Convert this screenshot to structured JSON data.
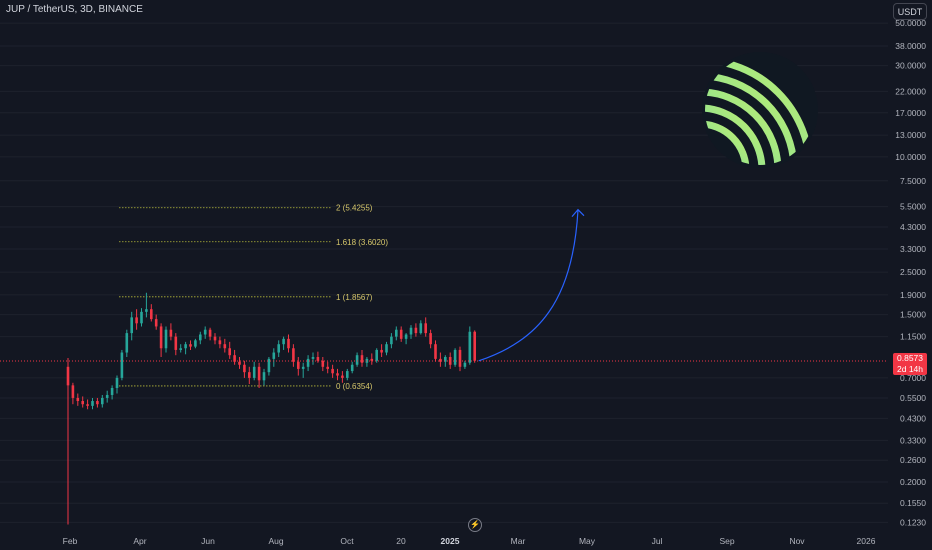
{
  "header": {
    "symbol_title": "JUP / TetherUS, 3D, BINANCE",
    "currency_label": "USDT"
  },
  "price_badge": {
    "price": "0.8573",
    "countdown": "2d 14h"
  },
  "colors": {
    "background": "#131722",
    "up": "#26a69a",
    "down": "#f23645",
    "fib_line": "#b5b83a",
    "arrow": "#2962ff"
  },
  "icons": {
    "logo": "jupiter-logo",
    "event": "lightning-icon"
  },
  "chart_data": {
    "type": "candlestick",
    "y_scale": "log",
    "ylim": [
      0.115,
      60
    ],
    "y_ticks": [
      "50.0000",
      "38.0000",
      "30.0000",
      "22.0000",
      "17.0000",
      "13.0000",
      "10.0000",
      "7.5000",
      "5.5000",
      "4.3000",
      "3.3000",
      "2.5000",
      "1.9000",
      "1.5000",
      "1.1500",
      "0.7000",
      "0.5500",
      "0.4300",
      "0.3300",
      "0.2600",
      "0.2000",
      "0.1550",
      "0.1230"
    ],
    "x_ticks": [
      "Feb",
      "Apr",
      "Jun",
      "Aug",
      "Oct",
      "20",
      "2025",
      "Mar",
      "May",
      "Jul",
      "Sep",
      "Nov",
      "2026"
    ],
    "grid": true,
    "fib_levels": [
      {
        "label": "0 (0.6354)",
        "value": 0.6354
      },
      {
        "label": "1 (1.8567)",
        "value": 1.8567
      },
      {
        "label": "1.618 (3.6020)",
        "value": 3.602
      },
      {
        "label": "2 (5.4255)",
        "value": 5.4255
      }
    ],
    "last_price": 0.8573,
    "projection": {
      "from_price": 0.86,
      "to_price": 5.3,
      "direction": "up"
    },
    "candles": [
      {
        "o": 0.8,
        "h": 0.89,
        "l": 0.12,
        "c": 0.64
      },
      {
        "o": 0.64,
        "h": 0.66,
        "l": 0.51,
        "c": 0.55
      },
      {
        "o": 0.55,
        "h": 0.58,
        "l": 0.5,
        "c": 0.53
      },
      {
        "o": 0.53,
        "h": 0.56,
        "l": 0.49,
        "c": 0.51
      },
      {
        "o": 0.51,
        "h": 0.54,
        "l": 0.48,
        "c": 0.5
      },
      {
        "o": 0.5,
        "h": 0.55,
        "l": 0.48,
        "c": 0.53
      },
      {
        "o": 0.53,
        "h": 0.55,
        "l": 0.49,
        "c": 0.51
      },
      {
        "o": 0.51,
        "h": 0.57,
        "l": 0.49,
        "c": 0.55
      },
      {
        "o": 0.55,
        "h": 0.6,
        "l": 0.52,
        "c": 0.57
      },
      {
        "o": 0.57,
        "h": 0.64,
        "l": 0.54,
        "c": 0.62
      },
      {
        "o": 0.62,
        "h": 0.72,
        "l": 0.58,
        "c": 0.7
      },
      {
        "o": 0.7,
        "h": 0.98,
        "l": 0.68,
        "c": 0.95
      },
      {
        "o": 0.95,
        "h": 1.25,
        "l": 0.9,
        "c": 1.2
      },
      {
        "o": 1.2,
        "h": 1.55,
        "l": 1.1,
        "c": 1.45
      },
      {
        "o": 1.45,
        "h": 1.6,
        "l": 1.25,
        "c": 1.35
      },
      {
        "o": 1.35,
        "h": 1.62,
        "l": 1.3,
        "c": 1.55
      },
      {
        "o": 1.55,
        "h": 1.95,
        "l": 1.45,
        "c": 1.6
      },
      {
        "o": 1.6,
        "h": 1.7,
        "l": 1.38,
        "c": 1.42
      },
      {
        "o": 1.42,
        "h": 1.5,
        "l": 1.25,
        "c": 1.3
      },
      {
        "o": 1.3,
        "h": 1.35,
        "l": 0.9,
        "c": 1.0
      },
      {
        "o": 1.0,
        "h": 1.3,
        "l": 0.95,
        "c": 1.25
      },
      {
        "o": 1.25,
        "h": 1.35,
        "l": 1.1,
        "c": 1.15
      },
      {
        "o": 1.15,
        "h": 1.2,
        "l": 0.92,
        "c": 0.98
      },
      {
        "o": 0.98,
        "h": 1.05,
        "l": 0.95,
        "c": 1.0
      },
      {
        "o": 1.0,
        "h": 1.08,
        "l": 0.93,
        "c": 1.05
      },
      {
        "o": 1.05,
        "h": 1.1,
        "l": 0.98,
        "c": 1.02
      },
      {
        "o": 1.02,
        "h": 1.12,
        "l": 1.0,
        "c": 1.1
      },
      {
        "o": 1.1,
        "h": 1.22,
        "l": 1.05,
        "c": 1.18
      },
      {
        "o": 1.18,
        "h": 1.3,
        "l": 1.12,
        "c": 1.25
      },
      {
        "o": 1.25,
        "h": 1.28,
        "l": 1.1,
        "c": 1.15
      },
      {
        "o": 1.15,
        "h": 1.2,
        "l": 1.05,
        "c": 1.1
      },
      {
        "o": 1.1,
        "h": 1.15,
        "l": 1.0,
        "c": 1.05
      },
      {
        "o": 1.05,
        "h": 1.12,
        "l": 0.95,
        "c": 1.0
      },
      {
        "o": 1.0,
        "h": 1.08,
        "l": 0.88,
        "c": 0.92
      },
      {
        "o": 0.92,
        "h": 0.98,
        "l": 0.82,
        "c": 0.85
      },
      {
        "o": 0.85,
        "h": 0.9,
        "l": 0.78,
        "c": 0.82
      },
      {
        "o": 0.82,
        "h": 0.86,
        "l": 0.7,
        "c": 0.75
      },
      {
        "o": 0.75,
        "h": 0.8,
        "l": 0.65,
        "c": 0.7
      },
      {
        "o": 0.7,
        "h": 0.85,
        "l": 0.68,
        "c": 0.8
      },
      {
        "o": 0.8,
        "h": 0.84,
        "l": 0.62,
        "c": 0.68
      },
      {
        "o": 0.68,
        "h": 0.78,
        "l": 0.64,
        "c": 0.75
      },
      {
        "o": 0.75,
        "h": 0.9,
        "l": 0.72,
        "c": 0.88
      },
      {
        "o": 0.88,
        "h": 1.0,
        "l": 0.8,
        "c": 0.95
      },
      {
        "o": 0.95,
        "h": 1.1,
        "l": 0.9,
        "c": 1.05
      },
      {
        "o": 1.05,
        "h": 1.15,
        "l": 0.98,
        "c": 1.12
      },
      {
        "o": 1.12,
        "h": 1.18,
        "l": 0.95,
        "c": 1.0
      },
      {
        "o": 1.0,
        "h": 1.05,
        "l": 0.8,
        "c": 0.85
      },
      {
        "o": 0.85,
        "h": 0.9,
        "l": 0.72,
        "c": 0.78
      },
      {
        "o": 0.78,
        "h": 0.84,
        "l": 0.7,
        "c": 0.8
      },
      {
        "o": 0.8,
        "h": 0.92,
        "l": 0.76,
        "c": 0.88
      },
      {
        "o": 0.88,
        "h": 0.95,
        "l": 0.82,
        "c": 0.9
      },
      {
        "o": 0.9,
        "h": 0.96,
        "l": 0.84,
        "c": 0.86
      },
      {
        "o": 0.86,
        "h": 0.9,
        "l": 0.76,
        "c": 0.8
      },
      {
        "o": 0.8,
        "h": 0.85,
        "l": 0.74,
        "c": 0.78
      },
      {
        "o": 0.78,
        "h": 0.82,
        "l": 0.7,
        "c": 0.74
      },
      {
        "o": 0.74,
        "h": 0.78,
        "l": 0.68,
        "c": 0.72
      },
      {
        "o": 0.72,
        "h": 0.76,
        "l": 0.66,
        "c": 0.7
      },
      {
        "o": 0.7,
        "h": 0.78,
        "l": 0.68,
        "c": 0.76
      },
      {
        "o": 0.76,
        "h": 0.85,
        "l": 0.74,
        "c": 0.82
      },
      {
        "o": 0.82,
        "h": 0.95,
        "l": 0.8,
        "c": 0.92
      },
      {
        "o": 0.92,
        "h": 0.98,
        "l": 0.8,
        "c": 0.84
      },
      {
        "o": 0.84,
        "h": 0.9,
        "l": 0.8,
        "c": 0.88
      },
      {
        "o": 0.88,
        "h": 0.94,
        "l": 0.82,
        "c": 0.86
      },
      {
        "o": 0.86,
        "h": 1.0,
        "l": 0.84,
        "c": 0.98
      },
      {
        "o": 0.98,
        "h": 1.05,
        "l": 0.9,
        "c": 0.95
      },
      {
        "o": 0.95,
        "h": 1.08,
        "l": 0.92,
        "c": 1.05
      },
      {
        "o": 1.05,
        "h": 1.2,
        "l": 1.0,
        "c": 1.15
      },
      {
        "o": 1.15,
        "h": 1.3,
        "l": 1.1,
        "c": 1.25
      },
      {
        "o": 1.25,
        "h": 1.3,
        "l": 1.08,
        "c": 1.12
      },
      {
        "o": 1.12,
        "h": 1.2,
        "l": 1.05,
        "c": 1.18
      },
      {
        "o": 1.18,
        "h": 1.32,
        "l": 1.12,
        "c": 1.28
      },
      {
        "o": 1.28,
        "h": 1.35,
        "l": 1.15,
        "c": 1.2
      },
      {
        "o": 1.2,
        "h": 1.4,
        "l": 1.18,
        "c": 1.35
      },
      {
        "o": 1.35,
        "h": 1.45,
        "l": 1.15,
        "c": 1.2
      },
      {
        "o": 1.2,
        "h": 1.25,
        "l": 1.0,
        "c": 1.05
      },
      {
        "o": 1.05,
        "h": 1.1,
        "l": 0.85,
        "c": 0.88
      },
      {
        "o": 0.88,
        "h": 0.95,
        "l": 0.8,
        "c": 0.85
      },
      {
        "o": 0.85,
        "h": 0.92,
        "l": 0.8,
        "c": 0.9
      },
      {
        "o": 0.9,
        "h": 0.95,
        "l": 0.78,
        "c": 0.82
      },
      {
        "o": 0.82,
        "h": 1.0,
        "l": 0.8,
        "c": 0.98
      },
      {
        "o": 0.98,
        "h": 1.02,
        "l": 0.76,
        "c": 0.8
      },
      {
        "o": 0.8,
        "h": 0.86,
        "l": 0.78,
        "c": 0.84
      },
      {
        "o": 0.84,
        "h": 1.3,
        "l": 0.82,
        "c": 1.22
      },
      {
        "o": 1.22,
        "h": 1.24,
        "l": 0.84,
        "c": 0.86
      }
    ]
  }
}
